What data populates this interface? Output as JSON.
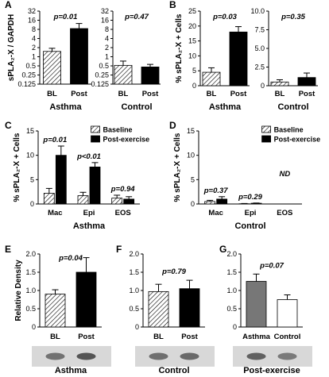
{
  "colors": {
    "baseline": "#ffffff",
    "post": "#000000",
    "hatch": "#000000",
    "asthma_gray": "#777777",
    "blot": "#333333"
  },
  "chart_data": [
    {
      "panel": "A",
      "type": "bar",
      "scale": "log2",
      "ylabel": "sPLA₂-X / GAPDH",
      "yticks": [
        0.125,
        0.25,
        0.5,
        1,
        2,
        4,
        8,
        16,
        32
      ],
      "ytick_labels": [
        "0.125",
        "0.25",
        "0.5",
        "1",
        "2",
        "4",
        "8",
        "16",
        "32"
      ],
      "ylim": [
        0.125,
        32
      ],
      "categories": [
        "BL",
        "Post"
      ],
      "values": [
        1.5,
        8.5
      ],
      "errors_high": [
        1.9,
        12.5
      ],
      "fills": [
        "hatch",
        "black"
      ],
      "pvalue": "p=0.01",
      "group_label": "Asthma"
    },
    {
      "panel": "A2",
      "type": "bar",
      "scale": "log2",
      "yticks": [
        0.125,
        0.25,
        0.5,
        1,
        2,
        4,
        8,
        16,
        32
      ],
      "ytick_labels": [
        "0.125",
        "0.25",
        "0.5",
        "1",
        "2",
        "4",
        "8",
        "16",
        "32"
      ],
      "ylim": [
        0.125,
        32
      ],
      "categories": [
        "BL",
        "Post"
      ],
      "values": [
        0.52,
        0.46
      ],
      "errors_high": [
        0.72,
        0.56
      ],
      "fills": [
        "hatch",
        "black"
      ],
      "pvalue": "p=0.47",
      "group_label": "Control"
    },
    {
      "panel": "B",
      "type": "bar",
      "ylabel": "% sPLA₂-X + Cells",
      "yticks": [
        0,
        5,
        10,
        15,
        20,
        25
      ],
      "ytick_labels": [
        "0",
        "5",
        "10",
        "15",
        "20",
        "25"
      ],
      "ylim": [
        0,
        25
      ],
      "categories": [
        "BL",
        "Post"
      ],
      "values": [
        4.5,
        18.0
      ],
      "errors_high": [
        6.0,
        19.8
      ],
      "fills": [
        "hatch",
        "black"
      ],
      "pvalue": "p=0.03",
      "group_label": "Asthma"
    },
    {
      "panel": "B2",
      "type": "bar",
      "yticks": [
        0,
        2.5,
        5,
        7.5,
        10
      ],
      "ytick_labels": [
        "0",
        "2.5",
        "5.0",
        "7.5",
        "10.0"
      ],
      "ylim": [
        0,
        10
      ],
      "categories": [
        "BL",
        "Post"
      ],
      "values": [
        0.5,
        1.1
      ],
      "errors_high": [
        0.8,
        1.7
      ],
      "fills": [
        "hatch",
        "black"
      ],
      "pvalue": "p=0.35",
      "group_label": "Control"
    },
    {
      "panel": "C",
      "type": "bar",
      "ylabel": "% sPLA₂-X + Cells",
      "yticks": [
        0,
        5,
        10,
        15
      ],
      "ytick_labels": [
        "0",
        "5",
        "10",
        "15"
      ],
      "ylim": [
        0,
        15
      ],
      "categories": [
        "Mac",
        "Epi",
        "EOS"
      ],
      "series": [
        {
          "name": "Baseline",
          "values": [
            2.2,
            1.7,
            1.2
          ],
          "errors_high": [
            3.2,
            2.4,
            1.8
          ],
          "fill": "hatch"
        },
        {
          "name": "Post-exercise",
          "values": [
            10.0,
            7.6,
            1.0
          ],
          "errors_high": [
            11.9,
            8.5,
            1.5
          ],
          "fill": "black"
        }
      ],
      "pvalues": [
        "p=0.01",
        "p<0.01",
        "p=0.94"
      ],
      "group_label": "Asthma"
    },
    {
      "panel": "D",
      "type": "bar",
      "ylabel": "% sPLA₂-X + Cells",
      "yticks": [
        0,
        5,
        10,
        15
      ],
      "ytick_labels": [
        "0",
        "5",
        "10",
        "15"
      ],
      "ylim": [
        0,
        15
      ],
      "categories": [
        "Mac",
        "Epi",
        "EOS"
      ],
      "series": [
        {
          "name": "Baseline",
          "values": [
            0.5,
            0.05,
            0
          ],
          "errors_high": [
            0.75,
            0.1,
            0
          ],
          "fill": "hatch"
        },
        {
          "name": "Post-exercise",
          "values": [
            1.0,
            0.15,
            0
          ],
          "errors_high": [
            1.5,
            0.2,
            0
          ],
          "fill": "black"
        }
      ],
      "pvalues": [
        "p=0.37",
        "p=0.29",
        "ND"
      ],
      "group_label": "Control"
    },
    {
      "panel": "E",
      "type": "bar",
      "ylabel": "Relative Density",
      "yticks": [
        0,
        0.5,
        1.0,
        1.5,
        2.0
      ],
      "ytick_labels": [
        "0",
        "0.5",
        "1.0",
        "1.5",
        "2.0"
      ],
      "ylim": [
        0,
        2.0
      ],
      "categories": [
        "BL",
        "Post"
      ],
      "values": [
        0.9,
        1.5
      ],
      "errors_high": [
        1.02,
        1.9
      ],
      "fills": [
        "hatch",
        "black"
      ],
      "pvalue": "p=0.04",
      "group_label": "Asthma"
    },
    {
      "panel": "F",
      "type": "bar",
      "yticks": [
        0,
        0.5,
        1.0,
        1.5,
        2.0
      ],
      "ytick_labels": [
        "0",
        "0.5",
        "1.0",
        "1.5",
        "2.0"
      ],
      "ylim": [
        0,
        2.0
      ],
      "categories": [
        "BL",
        "Post"
      ],
      "values": [
        0.97,
        1.05
      ],
      "errors_high": [
        1.17,
        1.28
      ],
      "fills": [
        "hatch",
        "black"
      ],
      "pvalue": "p=0.79",
      "group_label": "Control"
    },
    {
      "panel": "G",
      "type": "bar",
      "yticks": [
        0,
        0.5,
        1.0,
        1.5,
        2.0
      ],
      "ytick_labels": [
        "0",
        "0.5",
        "1.0",
        "1.5",
        "2.0"
      ],
      "ylim": [
        0,
        2.0
      ],
      "categories": [
        "Asthma",
        "Control"
      ],
      "values": [
        1.25,
        0.75
      ],
      "errors_high": [
        1.45,
        0.88
      ],
      "fills": [
        "gray",
        "white"
      ],
      "pvalue": "p=0.07",
      "group_label": "Post-exercise"
    }
  ]
}
